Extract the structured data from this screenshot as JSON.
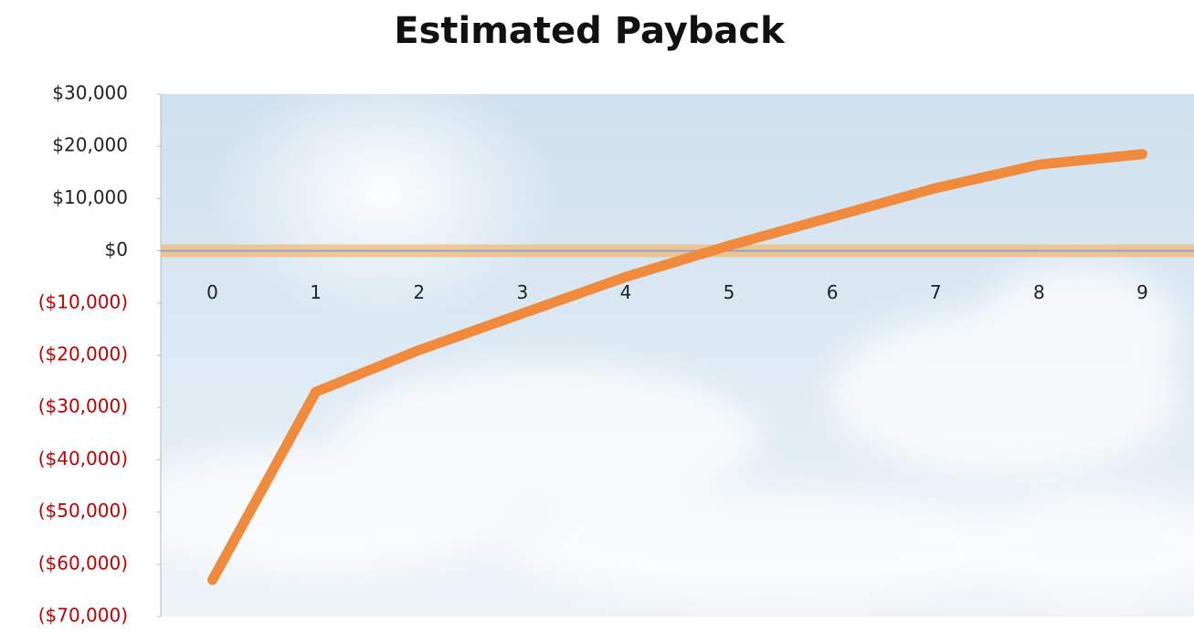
{
  "chart_data": {
    "type": "line",
    "title": "Estimated Payback",
    "categories": [
      "0",
      "1",
      "2",
      "3",
      "4",
      "5",
      "6",
      "7",
      "8",
      "9"
    ],
    "values": [
      -63000,
      -27000,
      -19000,
      -12000,
      -5000,
      1000,
      6500,
      12000,
      16500,
      18500
    ],
    "color": "#f08a3c",
    "negative_tick_color": "#c00000",
    "ylim": [
      -70000,
      30000
    ],
    "yticks": [
      {
        "value": -70000,
        "label": "($70,000)"
      },
      {
        "value": -60000,
        "label": "($60,000)"
      },
      {
        "value": -50000,
        "label": "($50,000)"
      },
      {
        "value": -40000,
        "label": "($40,000)"
      },
      {
        "value": -30000,
        "label": "($30,000)"
      },
      {
        "value": -20000,
        "label": "($20,000)"
      },
      {
        "value": -10000,
        "label": "($10,000)"
      },
      {
        "value": 0,
        "label": "$0"
      },
      {
        "value": 10000,
        "label": "$10,000"
      },
      {
        "value": 20000,
        "label": "$20,000"
      },
      {
        "value": 30000,
        "label": "$30,000"
      }
    ]
  }
}
